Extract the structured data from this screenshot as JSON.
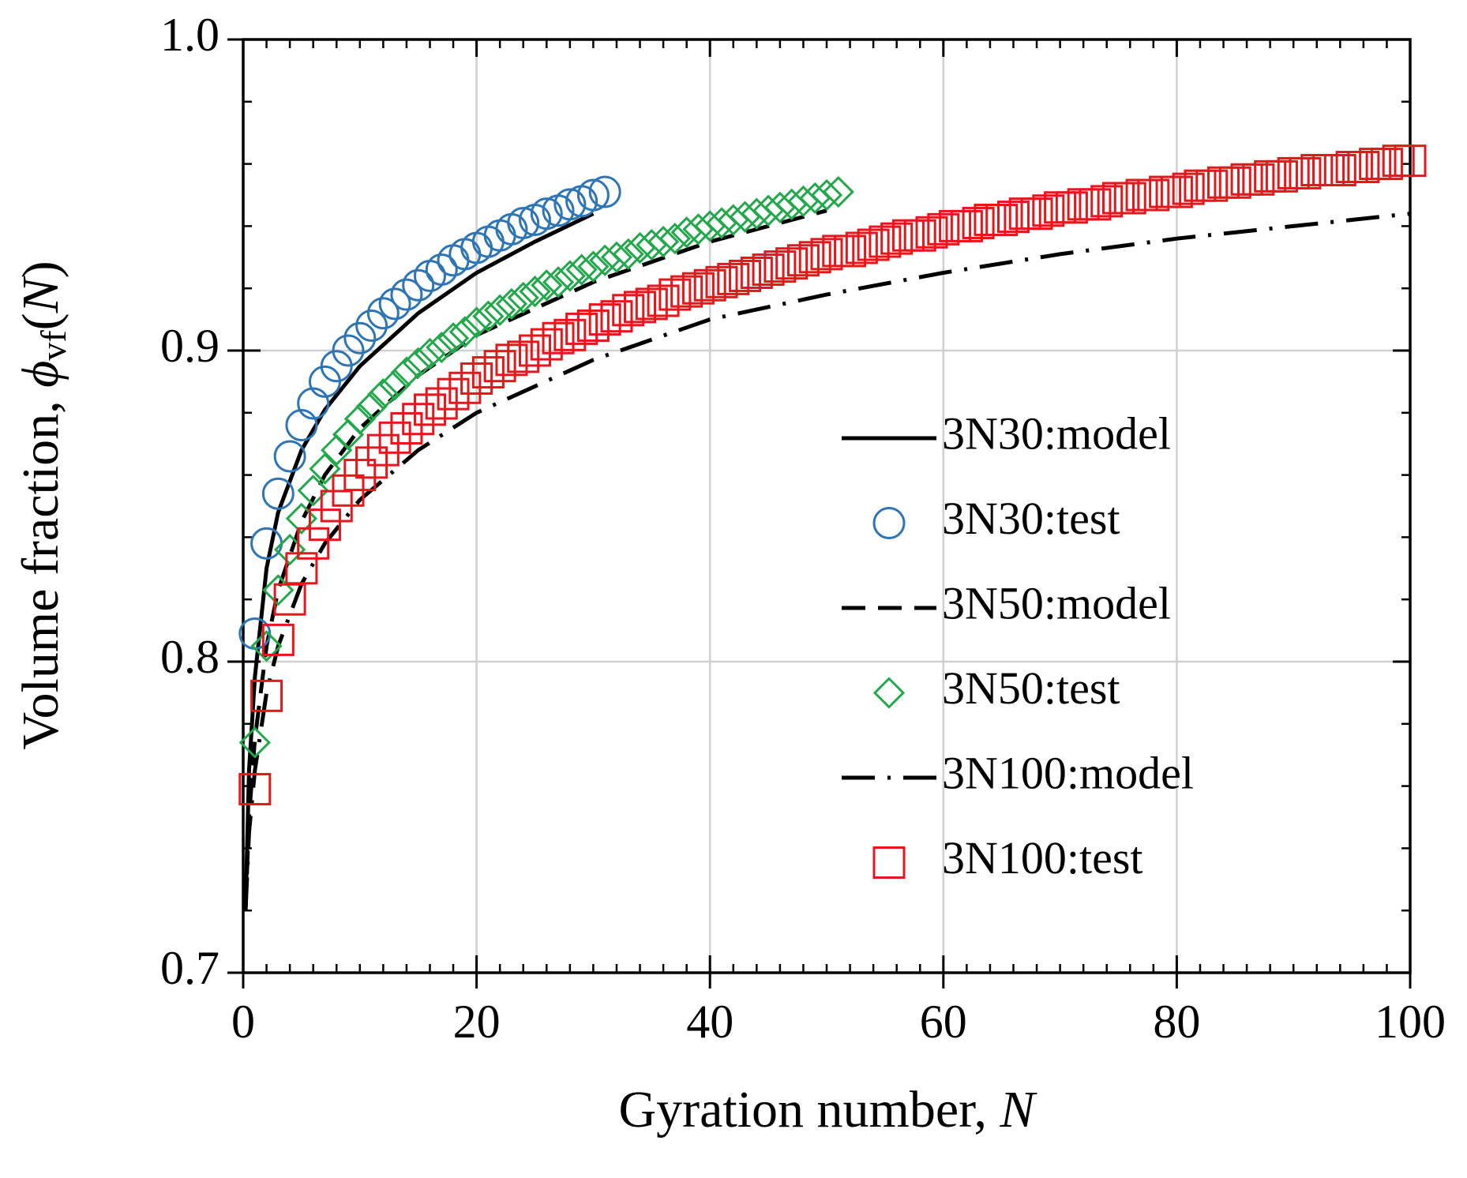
{
  "chart_data": {
    "type": "scatter",
    "x_label": [
      "Gyration number, ",
      "N"
    ],
    "y_label": [
      "Volume fraction, ",
      "ϕ",
      "vf",
      "(",
      "N",
      ")"
    ],
    "xlim": [
      0,
      100
    ],
    "xticks": [
      0,
      20,
      40,
      60,
      80,
      100
    ],
    "xminor": 2,
    "ylim": [
      0.7,
      1
    ],
    "yticks": [
      0.7,
      0.8,
      0.9,
      {
        "value": 1,
        "label": "1.0"
      }
    ],
    "yminor": 0.02,
    "grid": true,
    "legend": "right",
    "series": [
      {
        "name": "3N30:model",
        "color": "#000000",
        "line": "solid",
        "x": [
          0.2,
          0.5,
          1,
          2,
          3,
          5,
          7,
          10,
          15,
          20,
          25,
          30
        ],
        "values": [
          0.72,
          0.765,
          0.795,
          0.83,
          0.848,
          0.868,
          0.881,
          0.895,
          0.912,
          0.925,
          0.935,
          0.944
        ]
      },
      {
        "name": "3N30:test",
        "color": "#2e75b6",
        "marker": "circle",
        "x": [
          1,
          2,
          3,
          4,
          5,
          6,
          7,
          8,
          9,
          10,
          11,
          12,
          13,
          14,
          15,
          16,
          17,
          18,
          19,
          20,
          21,
          22,
          23,
          24,
          25,
          26,
          27,
          28,
          29,
          30,
          31
        ],
        "values": [
          0.809,
          0.838,
          0.854,
          0.866,
          0.876,
          0.883,
          0.89,
          0.895,
          0.9,
          0.904,
          0.908,
          0.912,
          0.915,
          0.918,
          0.921,
          0.924,
          0.926,
          0.929,
          0.931,
          0.933,
          0.935,
          0.937,
          0.939,
          0.941,
          0.942,
          0.944,
          0.945,
          0.947,
          0.948,
          0.95,
          0.951
        ]
      },
      {
        "name": "3N50:model",
        "color": "#000000",
        "line": "dashed",
        "x": [
          0.2,
          0.5,
          1,
          2,
          3,
          5,
          7,
          10,
          15,
          20,
          30,
          40,
          50
        ],
        "values": [
          0.72,
          0.75,
          0.775,
          0.805,
          0.823,
          0.845,
          0.86,
          0.875,
          0.892,
          0.905,
          0.922,
          0.935,
          0.945
        ]
      },
      {
        "name": "3N50:test",
        "color": "#22a84a",
        "marker": "diamond",
        "x": [
          1,
          2,
          3,
          4,
          5,
          6,
          7,
          8,
          9,
          10,
          11,
          12,
          13,
          14,
          15,
          16,
          17,
          18,
          19,
          20,
          21,
          22,
          23,
          24,
          25,
          26,
          27,
          28,
          29,
          30,
          31,
          32,
          33,
          34,
          35,
          36,
          37,
          38,
          39,
          40,
          41,
          42,
          43,
          44,
          45,
          46,
          47,
          48,
          49,
          50,
          51
        ],
        "values": [
          0.774,
          0.805,
          0.823,
          0.836,
          0.846,
          0.855,
          0.862,
          0.868,
          0.873,
          0.878,
          0.882,
          0.886,
          0.889,
          0.893,
          0.896,
          0.899,
          0.901,
          0.904,
          0.906,
          0.909,
          0.911,
          0.913,
          0.915,
          0.917,
          0.919,
          0.921,
          0.922,
          0.924,
          0.926,
          0.927,
          0.929,
          0.93,
          0.931,
          0.933,
          0.934,
          0.935,
          0.936,
          0.938,
          0.939,
          0.94,
          0.941,
          0.942,
          0.943,
          0.944,
          0.945,
          0.946,
          0.947,
          0.948,
          0.949,
          0.95,
          0.951
        ]
      },
      {
        "name": "3N100:model",
        "color": "#000000",
        "line": "dashdot",
        "x": [
          0.2,
          0.5,
          1,
          2,
          3,
          5,
          7,
          10,
          15,
          20,
          30,
          40,
          50,
          60,
          70,
          80,
          90,
          100
        ],
        "values": [
          0.72,
          0.745,
          0.765,
          0.79,
          0.805,
          0.825,
          0.838,
          0.852,
          0.868,
          0.88,
          0.897,
          0.91,
          0.918,
          0.925,
          0.931,
          0.936,
          0.94,
          0.944
        ]
      },
      {
        "name": "3N100:test",
        "color": "#e8161b",
        "marker": "square",
        "x": [
          1,
          2,
          3,
          4,
          5,
          6,
          7,
          8,
          9,
          10,
          11,
          12,
          13,
          14,
          15,
          16,
          17,
          18,
          19,
          20,
          21,
          22,
          23,
          24,
          25,
          26,
          27,
          28,
          29,
          30,
          31,
          32,
          33,
          34,
          35,
          36,
          37,
          38,
          39,
          40,
          41,
          42,
          43,
          44,
          45,
          46,
          47,
          48,
          49,
          50,
          51,
          52,
          53,
          54,
          55,
          56,
          57,
          58,
          59,
          60,
          61,
          62,
          63,
          64,
          65,
          66,
          67,
          68,
          69,
          70,
          71,
          72,
          73,
          74,
          75,
          76,
          77,
          78,
          79,
          80,
          81,
          82,
          83,
          84,
          85,
          86,
          87,
          88,
          89,
          90,
          91,
          92,
          93,
          94,
          95,
          96,
          97,
          98,
          99,
          100
        ],
        "values": [
          0.759,
          0.789,
          0.807,
          0.82,
          0.83,
          0.838,
          0.844,
          0.85,
          0.855,
          0.86,
          0.864,
          0.868,
          0.872,
          0.875,
          0.878,
          0.881,
          0.883,
          0.886,
          0.888,
          0.891,
          0.893,
          0.895,
          0.897,
          0.898,
          0.9,
          0.902,
          0.904,
          0.905,
          0.907,
          0.908,
          0.91,
          0.911,
          0.913,
          0.914,
          0.915,
          0.916,
          0.918,
          0.919,
          0.92,
          0.921,
          0.922,
          0.923,
          0.924,
          0.925,
          0.926,
          0.927,
          0.928,
          0.929,
          0.93,
          0.931,
          0.932,
          0.932,
          0.933,
          0.934,
          0.935,
          0.936,
          0.937,
          0.937,
          0.938,
          0.939,
          0.94,
          0.94,
          0.941,
          0.942,
          0.942,
          0.943,
          0.944,
          0.944,
          0.945,
          0.946,
          0.946,
          0.947,
          0.947,
          0.948,
          0.949,
          0.949,
          0.95,
          0.95,
          0.951,
          0.951,
          0.952,
          0.953,
          0.953,
          0.954,
          0.954,
          0.955,
          0.955,
          0.956,
          0.956,
          0.957,
          0.957,
          0.958,
          0.958,
          0.958,
          0.959,
          0.959,
          0.96,
          0.96,
          0.961,
          0.961
        ]
      }
    ]
  }
}
